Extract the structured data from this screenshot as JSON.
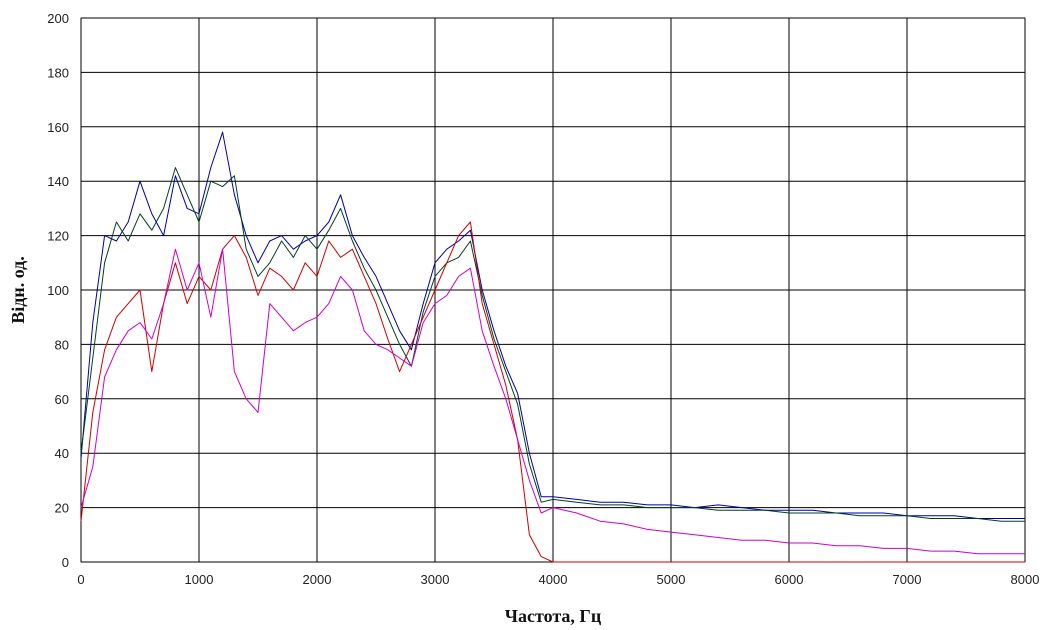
{
  "chart_data": {
    "type": "line",
    "title": "",
    "xlabel": "Частота, Гц",
    "ylabel": "Відн. од.",
    "xlim": [
      0,
      8000
    ],
    "ylim": [
      0,
      200
    ],
    "x_ticks": [
      0,
      1000,
      2000,
      3000,
      4000,
      5000,
      6000,
      7000,
      8000
    ],
    "y_ticks": [
      0,
      20,
      40,
      60,
      80,
      100,
      120,
      140,
      160,
      180,
      200
    ],
    "grid": true,
    "legend": "none",
    "x": [
      0,
      100,
      200,
      300,
      400,
      500,
      600,
      700,
      800,
      900,
      1000,
      1100,
      1200,
      1300,
      1400,
      1500,
      1600,
      1700,
      1800,
      1900,
      2000,
      2100,
      2200,
      2300,
      2400,
      2500,
      2600,
      2700,
      2800,
      2900,
      3000,
      3100,
      3200,
      3300,
      3400,
      3500,
      3600,
      3700,
      3800,
      3900,
      4000,
      4200,
      4400,
      4600,
      4800,
      5000,
      5200,
      5400,
      5600,
      5800,
      6000,
      6200,
      6400,
      6600,
      6800,
      7000,
      7200,
      7400,
      7600,
      7800,
      8000
    ],
    "series": [
      {
        "color": "#0000a0",
        "values": [
          38,
          88,
          120,
          118,
          125,
          140,
          128,
          120,
          142,
          130,
          128,
          145,
          158,
          135,
          120,
          110,
          118,
          120,
          115,
          118,
          120,
          125,
          135,
          120,
          112,
          105,
          95,
          85,
          78,
          95,
          110,
          115,
          118,
          122,
          100,
          85,
          72,
          62,
          40,
          24,
          24,
          23,
          22,
          22,
          21,
          21,
          20,
          21,
          20,
          19,
          19,
          19,
          18,
          18,
          18,
          17,
          17,
          17,
          16,
          16,
          16
        ]
      },
      {
        "color": "#004020",
        "values": [
          40,
          75,
          110,
          125,
          118,
          128,
          122,
          130,
          145,
          135,
          125,
          140,
          138,
          142,
          115,
          105,
          110,
          118,
          112,
          120,
          115,
          122,
          130,
          118,
          108,
          100,
          90,
          80,
          72,
          92,
          105,
          110,
          112,
          118,
          98,
          82,
          70,
          58,
          36,
          22,
          23,
          22,
          21,
          21,
          20,
          20,
          20,
          19,
          19,
          19,
          18,
          18,
          18,
          17,
          17,
          17,
          16,
          16,
          16,
          15,
          15
        ]
      },
      {
        "color": "#cc0000",
        "values": [
          15,
          55,
          78,
          90,
          95,
          100,
          70,
          95,
          110,
          95,
          105,
          100,
          115,
          120,
          112,
          98,
          108,
          105,
          100,
          110,
          105,
          118,
          112,
          115,
          105,
          95,
          82,
          70,
          80,
          90,
          100,
          110,
          120,
          125,
          95,
          80,
          65,
          45,
          10,
          2,
          0,
          0,
          0,
          0,
          0,
          0,
          0,
          0,
          0,
          0,
          0,
          0,
          0,
          0,
          0,
          0,
          0,
          0,
          0,
          0,
          0
        ]
      },
      {
        "color": "#cc00cc",
        "values": [
          20,
          35,
          68,
          78,
          85,
          88,
          82,
          95,
          115,
          100,
          110,
          90,
          115,
          70,
          60,
          55,
          95,
          90,
          85,
          88,
          90,
          95,
          105,
          100,
          85,
          80,
          78,
          75,
          72,
          88,
          95,
          98,
          105,
          108,
          85,
          72,
          60,
          45,
          30,
          18,
          20,
          18,
          15,
          14,
          12,
          11,
          10,
          9,
          8,
          8,
          7,
          7,
          6,
          6,
          5,
          5,
          4,
          4,
          3,
          3,
          3
        ]
      }
    ]
  }
}
